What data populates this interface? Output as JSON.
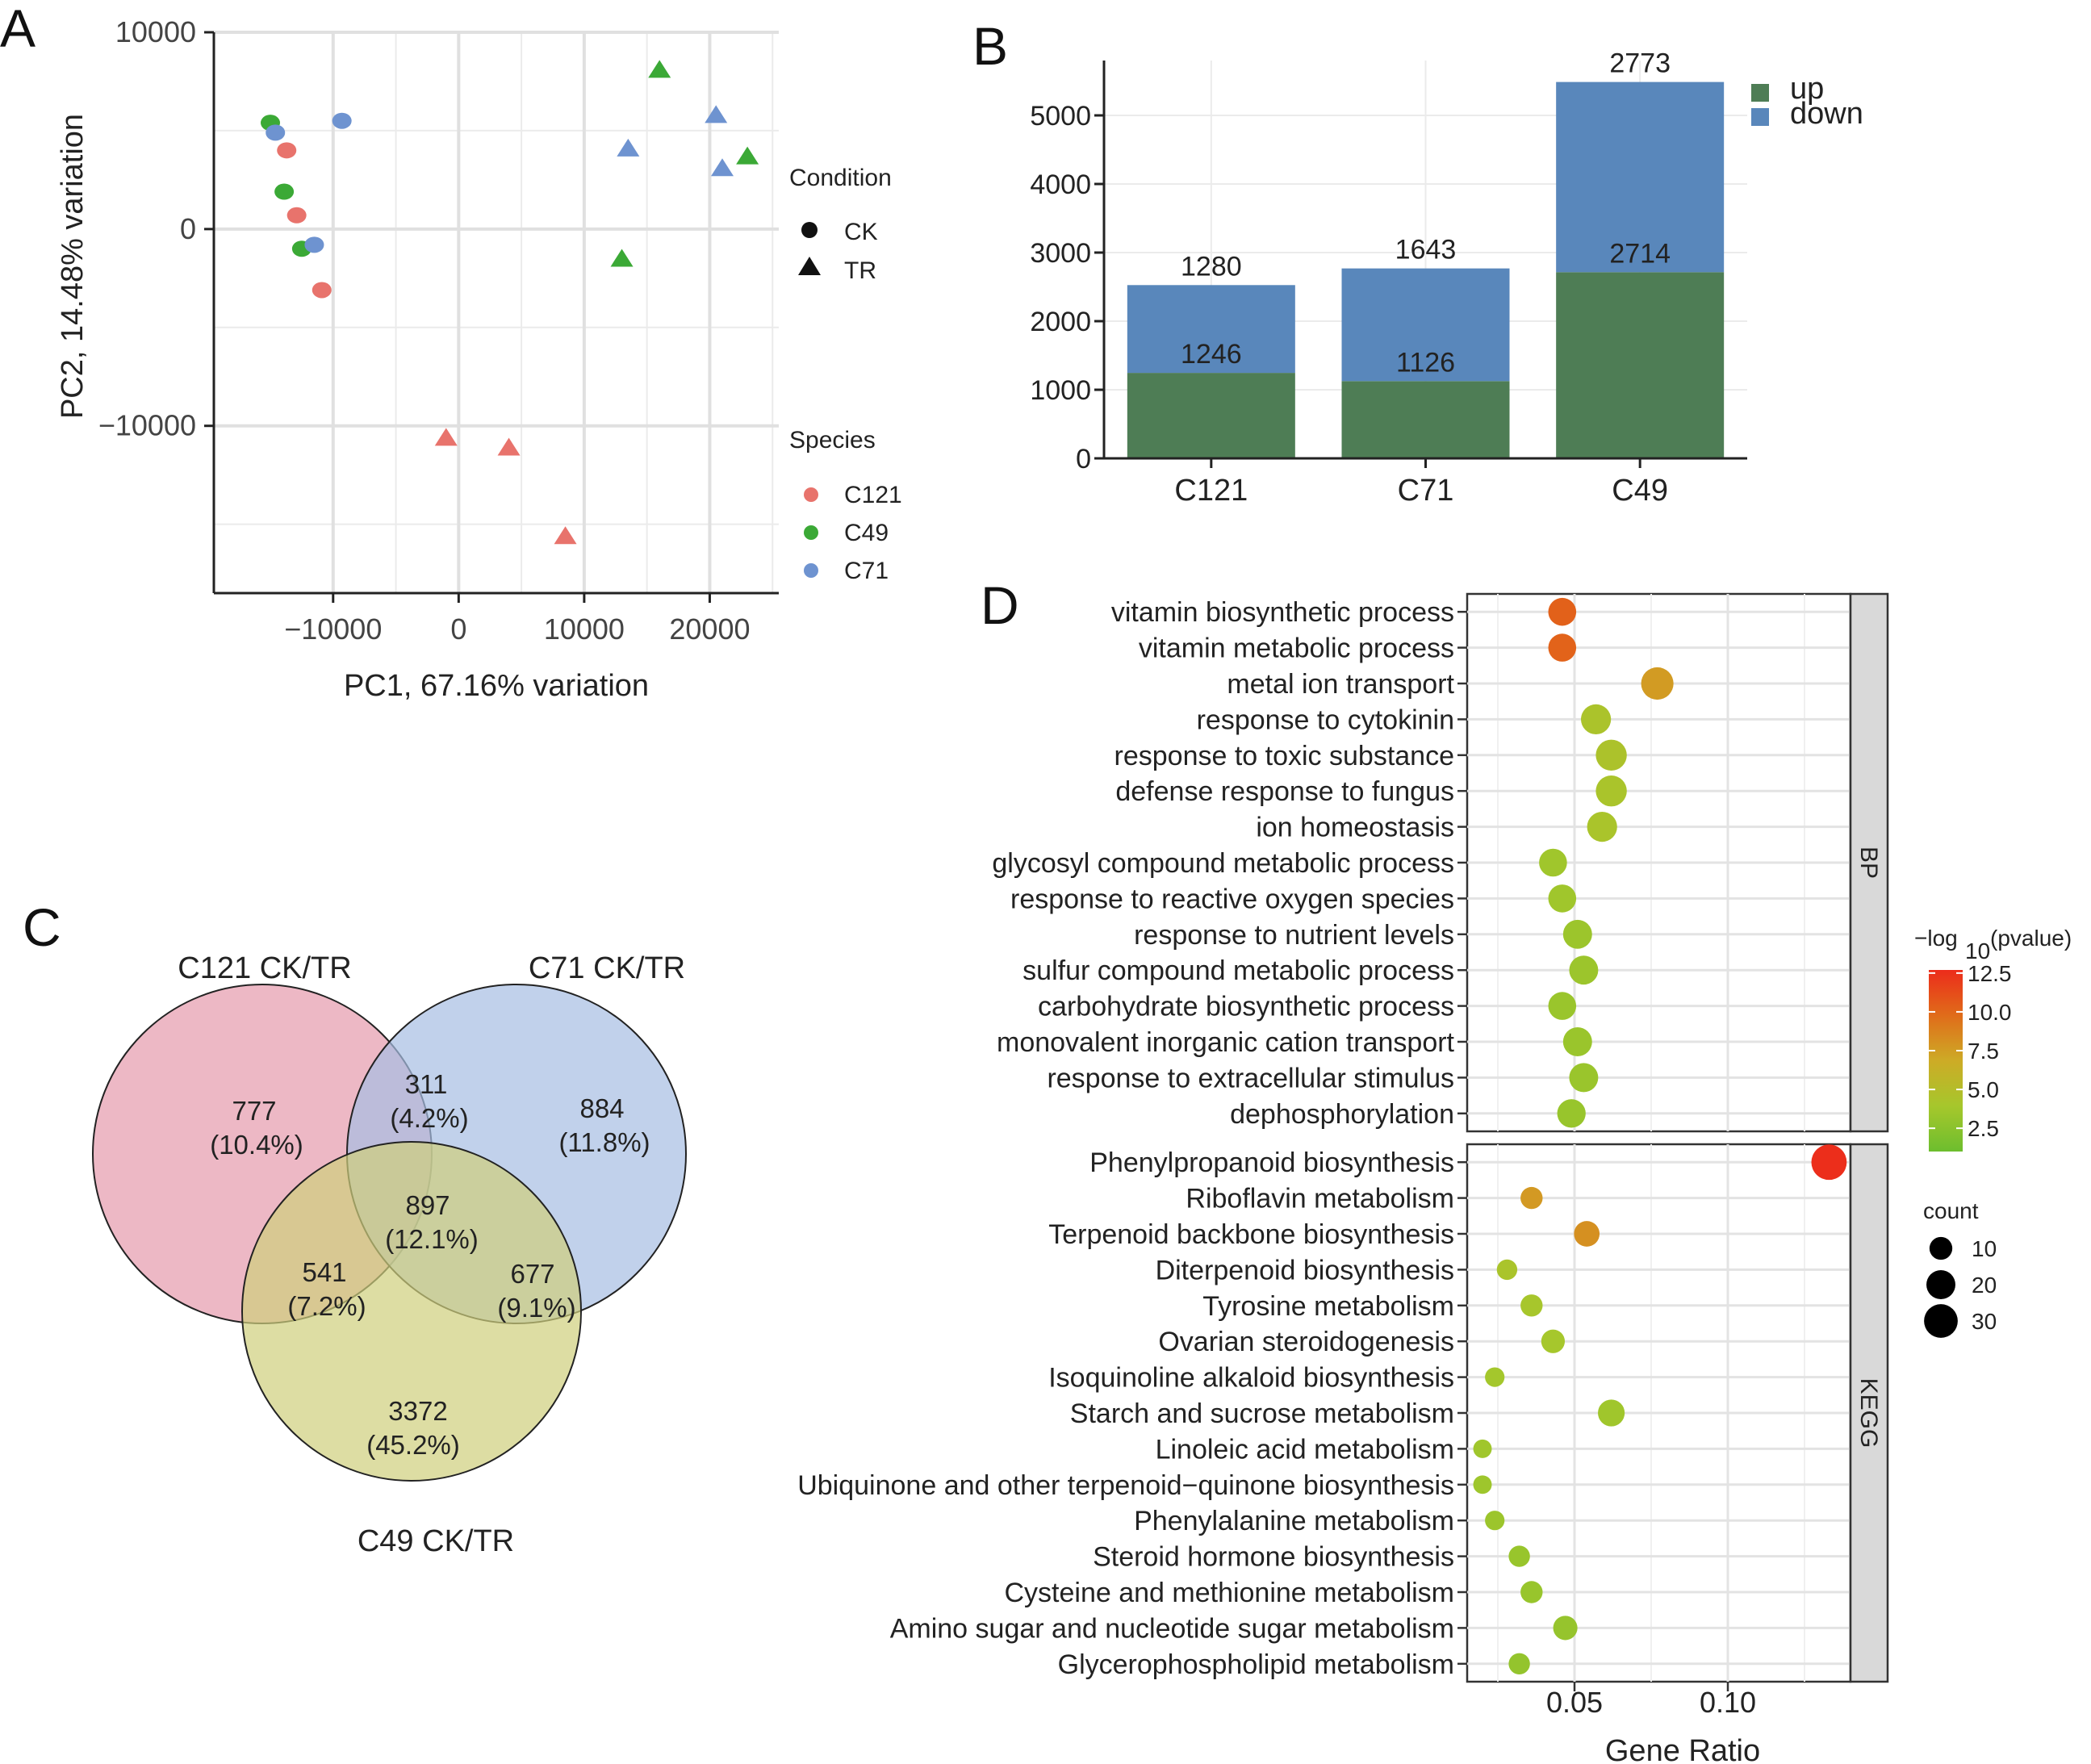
{
  "panel_labels": {
    "a": "A",
    "b": "B",
    "c": "C",
    "d": "D"
  },
  "chart_data": [
    {
      "id": "pca",
      "type": "scatter",
      "xlabel": "PC1, 67.16% variation",
      "ylabel": "PC2, 14.48% variation",
      "xlim": [
        -19500,
        25500
      ],
      "ylim": [
        -18500,
        10000
      ],
      "x_ticks": [
        -10000,
        0,
        10000,
        20000
      ],
      "x_tick_labels": [
        "−10000",
        "0",
        "10000",
        "20000"
      ],
      "y_ticks": [
        10000,
        0,
        -10000
      ],
      "y_tick_labels": [
        "10000",
        "0",
        "−10000"
      ],
      "legend_condition": {
        "title": "Condition",
        "items": [
          {
            "label": "CK",
            "shape": "circle"
          },
          {
            "label": "TR",
            "shape": "triangle"
          }
        ]
      },
      "legend_species": {
        "title": "Species",
        "items": [
          {
            "label": "C121",
            "color": "#E8736C"
          },
          {
            "label": "C49",
            "color": "#3BA936"
          },
          {
            "label": "C71",
            "color": "#6E93D0"
          }
        ]
      },
      "points": [
        {
          "x": -15000,
          "y": 5400,
          "species": "C49",
          "condition": "CK"
        },
        {
          "x": -14600,
          "y": 4900,
          "species": "C71",
          "condition": "CK"
        },
        {
          "x": -9300,
          "y": 5500,
          "species": "C71",
          "condition": "CK"
        },
        {
          "x": -13700,
          "y": 4000,
          "species": "C121",
          "condition": "CK"
        },
        {
          "x": -13900,
          "y": 1900,
          "species": "C49",
          "condition": "CK"
        },
        {
          "x": -12900,
          "y": 700,
          "species": "C121",
          "condition": "CK"
        },
        {
          "x": -12500,
          "y": -1000,
          "species": "C49",
          "condition": "CK"
        },
        {
          "x": -11500,
          "y": -800,
          "species": "C71",
          "condition": "CK"
        },
        {
          "x": -10900,
          "y": -3100,
          "species": "C121",
          "condition": "CK"
        },
        {
          "x": 16000,
          "y": 8100,
          "species": "C49",
          "condition": "TR"
        },
        {
          "x": 20500,
          "y": 5800,
          "species": "C71",
          "condition": "TR"
        },
        {
          "x": 13500,
          "y": 4100,
          "species": "C71",
          "condition": "TR"
        },
        {
          "x": 23000,
          "y": 3700,
          "species": "C49",
          "condition": "TR"
        },
        {
          "x": 21000,
          "y": 3100,
          "species": "C71",
          "condition": "TR"
        },
        {
          "x": 13000,
          "y": -1500,
          "species": "C49",
          "condition": "TR"
        },
        {
          "x": -1000,
          "y": -10600,
          "species": "C121",
          "condition": "TR"
        },
        {
          "x": 4000,
          "y": -11100,
          "species": "C121",
          "condition": "TR"
        },
        {
          "x": 8500,
          "y": -15600,
          "species": "C121",
          "condition": "TR"
        }
      ]
    },
    {
      "id": "deg_bars",
      "type": "bar",
      "stacked": true,
      "categories": [
        "C121",
        "C71",
        "C49"
      ],
      "ylim": [
        0,
        5800
      ],
      "y_ticks": [
        0,
        1000,
        2000,
        3000,
        4000,
        5000
      ],
      "y_tick_labels": [
        "0",
        "1000",
        "2000",
        "3000",
        "4000",
        "5000"
      ],
      "series": [
        {
          "name": "up",
          "color": "#4E7D55",
          "values": [
            1246,
            1126,
            2714
          ],
          "labels": [
            "1246",
            "1126",
            "2714"
          ]
        },
        {
          "name": "down",
          "color": "#5987BB",
          "values": [
            1280,
            1643,
            2773
          ],
          "labels": [
            "1280",
            "1643",
            "2773"
          ]
        }
      ]
    },
    {
      "id": "venn",
      "type": "venn",
      "sets": [
        {
          "name": "C121 CK/TR",
          "color": "#E8A6B7"
        },
        {
          "name": "C71 CK/TR",
          "color": "#B1C2E0"
        },
        {
          "name": "C49 CK/TR",
          "color": "#D8D79A"
        }
      ],
      "regions": [
        {
          "sets": [
            "C121 CK/TR"
          ],
          "count": "777",
          "pct": "(10.4%)"
        },
        {
          "sets": [
            "C71 CK/TR"
          ],
          "count": "884",
          "pct": "(11.8%)"
        },
        {
          "sets": [
            "C49 CK/TR"
          ],
          "count": "3372",
          "pct": "(45.2%)"
        },
        {
          "sets": [
            "C121 CK/TR",
            "C71 CK/TR"
          ],
          "count": "311",
          "pct": "(4.2%)"
        },
        {
          "sets": [
            "C121 CK/TR",
            "C49 CK/TR"
          ],
          "count": "541",
          "pct": "(7.2%)"
        },
        {
          "sets": [
            "C71 CK/TR",
            "C49 CK/TR"
          ],
          "count": "677",
          "pct": "(9.1%)"
        },
        {
          "sets": [
            "C121 CK/TR",
            "C71 CK/TR",
            "C49 CK/TR"
          ],
          "count": "897",
          "pct": "(12.1%)"
        }
      ]
    },
    {
      "id": "enrichment",
      "type": "scatter",
      "xlabel": "Gene Ratio",
      "xlim": [
        0.015,
        0.14
      ],
      "x_ticks": [
        0.05,
        0.1
      ],
      "x_tick_labels": [
        "0.05",
        "0.10"
      ],
      "color_legend": {
        "title_main": "−log",
        "title_sub": "10",
        "title_suffix": "(pvalue)",
        "min": 1.0,
        "max": 12.7,
        "ticks": [
          2.5,
          5.0,
          7.5,
          10.0,
          12.5
        ],
        "tick_labels": [
          "2.5",
          "5.0",
          "7.5",
          "10.0",
          "12.5"
        ],
        "colors": [
          "#6DBE2E",
          "#A6C72C",
          "#CDAB26",
          "#E06C1A",
          "#EC2C1B"
        ]
      },
      "size_legend": {
        "title": "count",
        "values": [
          10,
          20,
          30
        ],
        "labels": [
          "10",
          "20",
          "30"
        ]
      },
      "facets": [
        {
          "name": "BP",
          "terms": [
            {
              "term": "vitamin biosynthetic process",
              "ratio": 0.046,
              "count": 18,
              "logp": 10.3
            },
            {
              "term": "vitamin metabolic process",
              "ratio": 0.046,
              "count": 18,
              "logp": 10.2
            },
            {
              "term": "metal ion transport",
              "ratio": 0.077,
              "count": 27,
              "logp": 7.6
            },
            {
              "term": "response to cytokinin",
              "ratio": 0.057,
              "count": 22,
              "logp": 4.3
            },
            {
              "term": "response to toxic substance",
              "ratio": 0.062,
              "count": 24,
              "logp": 4.4
            },
            {
              "term": "defense response to fungus",
              "ratio": 0.062,
              "count": 24,
              "logp": 4.2
            },
            {
              "term": "ion homeostasis",
              "ratio": 0.059,
              "count": 22,
              "logp": 4.2
            },
            {
              "term": "glycosyl compound metabolic process",
              "ratio": 0.043,
              "count": 18,
              "logp": 3.6
            },
            {
              "term": "response to reactive oxygen species",
              "ratio": 0.046,
              "count": 18,
              "logp": 3.6
            },
            {
              "term": "response to nutrient levels",
              "ratio": 0.051,
              "count": 20,
              "logp": 3.4
            },
            {
              "term": "sulfur compound metabolic process",
              "ratio": 0.053,
              "count": 20,
              "logp": 3.4
            },
            {
              "term": "carbohydrate biosynthetic process",
              "ratio": 0.046,
              "count": 18,
              "logp": 3.3
            },
            {
              "term": "monovalent inorganic cation transport",
              "ratio": 0.051,
              "count": 20,
              "logp": 3.3
            },
            {
              "term": "response to extracellular stimulus",
              "ratio": 0.053,
              "count": 20,
              "logp": 3.3
            },
            {
              "term": "dephosphorylation",
              "ratio": 0.049,
              "count": 19,
              "logp": 3.2
            }
          ]
        },
        {
          "name": "KEGG",
          "terms": [
            {
              "term": "Phenylpropanoid biosynthesis",
              "ratio": 0.133,
              "count": 34,
              "logp": 12.6
            },
            {
              "term": "Riboflavin metabolism",
              "ratio": 0.036,
              "count": 9,
              "logp": 7.7
            },
            {
              "term": "Terpenoid backbone biosynthesis",
              "ratio": 0.054,
              "count": 14,
              "logp": 8.1
            },
            {
              "term": "Diterpenoid biosynthesis",
              "ratio": 0.028,
              "count": 7,
              "logp": 4.2
            },
            {
              "term": "Tyrosine metabolism",
              "ratio": 0.036,
              "count": 9,
              "logp": 4.0
            },
            {
              "term": "Ovarian steroidogenesis",
              "ratio": 0.043,
              "count": 11,
              "logp": 3.9
            },
            {
              "term": "Isoquinoline alkaloid biosynthesis",
              "ratio": 0.024,
              "count": 6,
              "logp": 3.8
            },
            {
              "term": "Starch and sucrose metabolism",
              "ratio": 0.062,
              "count": 16,
              "logp": 3.6
            },
            {
              "term": "Linoleic acid metabolism",
              "ratio": 0.02,
              "count": 5,
              "logp": 3.6
            },
            {
              "term": "Ubiquinone and other terpenoid−quinone biosynthesis",
              "ratio": 0.02,
              "count": 5,
              "logp": 3.5
            },
            {
              "term": "Phenylalanine metabolism",
              "ratio": 0.024,
              "count": 6,
              "logp": 3.4
            },
            {
              "term": "Steroid hormone biosynthesis",
              "ratio": 0.032,
              "count": 8,
              "logp": 3.2
            },
            {
              "term": "Cysteine and methionine metabolism",
              "ratio": 0.036,
              "count": 9,
              "logp": 3.2
            },
            {
              "term": "Amino sugar and nucleotide sugar metabolism",
              "ratio": 0.047,
              "count": 12,
              "logp": 3.1
            },
            {
              "term": "Glycerophospholipid metabolism",
              "ratio": 0.032,
              "count": 8,
              "logp": 3.0
            }
          ]
        }
      ]
    }
  ]
}
